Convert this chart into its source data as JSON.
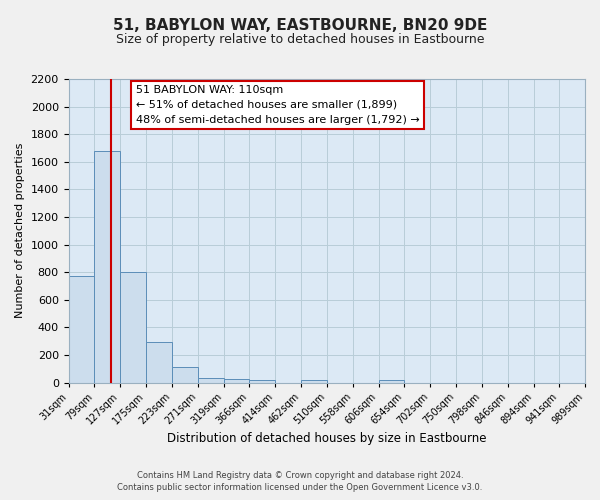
{
  "title": "51, BABYLON WAY, EASTBOURNE, BN20 9DE",
  "subtitle": "Size of property relative to detached houses in Eastbourne",
  "xlabel": "Distribution of detached houses by size in Eastbourne",
  "ylabel": "Number of detached properties",
  "footer_line1": "Contains HM Land Registry data © Crown copyright and database right 2024.",
  "footer_line2": "Contains public sector information licensed under the Open Government Licence v3.0.",
  "annotation_title": "51 BABYLON WAY: 110sqm",
  "annotation_line1": "← 51% of detached houses are smaller (1,899)",
  "annotation_line2": "48% of semi-detached houses are larger (1,792) →",
  "property_line_x": 110,
  "bar_edges": [
    31,
    79,
    127,
    175,
    223,
    271,
    319,
    366,
    414,
    462,
    510,
    558,
    606,
    654,
    702,
    750,
    798,
    846,
    894,
    941,
    989
  ],
  "bar_heights": [
    775,
    1680,
    800,
    295,
    115,
    35,
    25,
    20,
    0,
    20,
    0,
    0,
    20,
    0,
    0,
    0,
    0,
    0,
    0,
    0
  ],
  "bar_color": "#ccdded",
  "bar_edge_color": "#5b8db8",
  "vline_color": "#cc0000",
  "grid_color": "#b8cdd8",
  "background_color": "#dce9f5",
  "fig_background": "#f0f0f0",
  "ylim": [
    0,
    2200
  ],
  "yticks": [
    0,
    200,
    400,
    600,
    800,
    1000,
    1200,
    1400,
    1600,
    1800,
    2000,
    2200
  ],
  "annotation_box_color": "#ffffff",
  "annotation_box_edge": "#cc0000",
  "title_fontsize": 11,
  "subtitle_fontsize": 9,
  "ylabel_fontsize": 8,
  "xlabel_fontsize": 8.5,
  "ytick_fontsize": 8,
  "xtick_fontsize": 7,
  "footer_fontsize": 6,
  "ann_fontsize": 8
}
